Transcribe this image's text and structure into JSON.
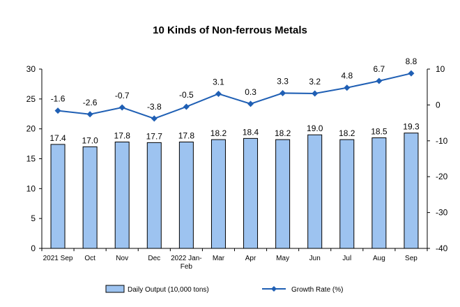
{
  "chart_data": {
    "type": "bar",
    "title": "10 Kinds of Non-ferrous Metals",
    "categories": [
      "2021 Sep",
      "Oct",
      "Nov",
      "Dec",
      "2022 Jan-Feb",
      "Mar",
      "Apr",
      "May",
      "Jun",
      "Jul",
      "Aug",
      "Sep"
    ],
    "series": [
      {
        "name": "Daily Output (10,000 tons)",
        "type": "bar",
        "axis": "left",
        "color": "#9dc3f0",
        "values": [
          17.4,
          17.0,
          17.8,
          17.7,
          17.8,
          18.2,
          18.4,
          18.2,
          19.0,
          18.2,
          18.5,
          19.3
        ],
        "labels": [
          "17.4",
          "17.0",
          "17.8",
          "17.7",
          "17.8",
          "18.2",
          "18.4",
          "18.2",
          "19.0",
          "18.2",
          "18.5",
          "19.3"
        ]
      },
      {
        "name": "Growth Rate (%)",
        "type": "line",
        "axis": "right",
        "color": "#1f5fb4",
        "values": [
          -1.6,
          -2.6,
          -0.7,
          -3.8,
          -0.5,
          3.1,
          0.3,
          3.3,
          3.2,
          4.8,
          6.7,
          8.8
        ],
        "labels": [
          "-1.6",
          "-2.6",
          "-0.7",
          "-3.8",
          "-0.5",
          "3.1",
          "0.3",
          "3.3",
          "3.2",
          "4.8",
          "6.7",
          "8.8"
        ]
      }
    ],
    "y_left": {
      "lim": [
        0,
        30
      ],
      "ticks": [
        "0",
        "5",
        "10",
        "15",
        "20",
        "25",
        "30"
      ]
    },
    "y_right": {
      "lim": [
        -40,
        10
      ],
      "ticks": [
        "-40",
        "-30",
        "-20",
        "-10",
        "0",
        "10"
      ]
    },
    "grid": false,
    "legend": "bottom"
  }
}
